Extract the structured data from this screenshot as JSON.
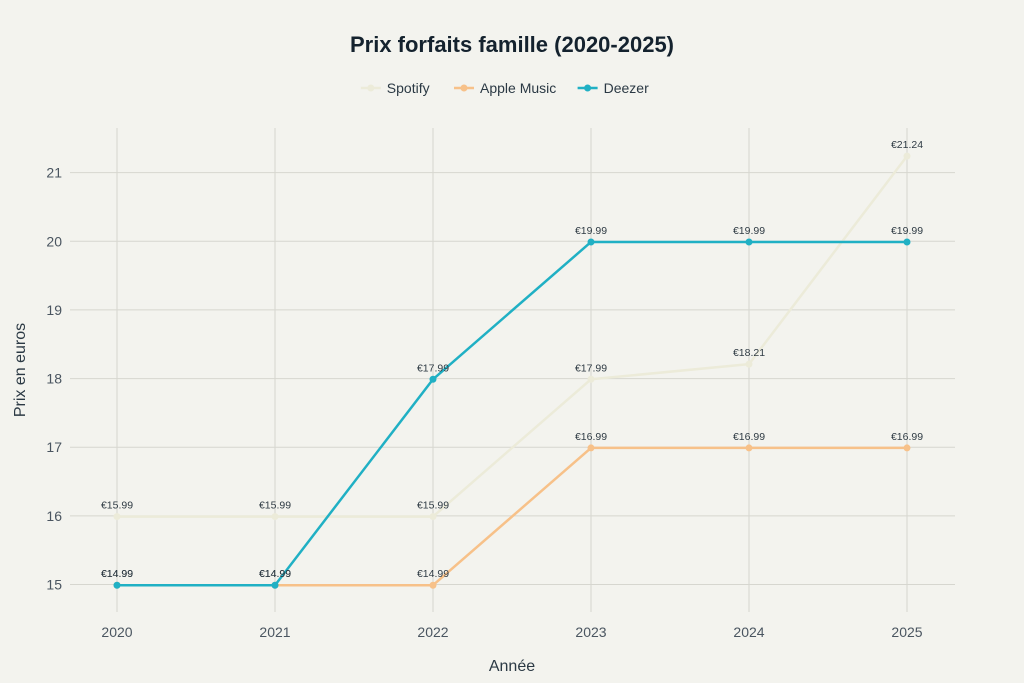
{
  "chart_data": {
    "type": "line",
    "title": "Prix forfaits famille (2020-2025)",
    "xlabel": "Année",
    "ylabel": "Prix en euros",
    "categories": [
      "2020",
      "2021",
      "2022",
      "2023",
      "2024",
      "2025"
    ],
    "ylim": [
      14.6,
      21.65
    ],
    "yticks": [
      15,
      16,
      17,
      18,
      19,
      20,
      21
    ],
    "grid": true,
    "legend_position": "top-center",
    "series": [
      {
        "name": "Spotify",
        "color": "#ecebd9",
        "values": [
          15.99,
          15.99,
          15.99,
          17.99,
          18.21,
          21.24
        ],
        "labels": [
          "€15.99",
          "€15.99",
          "€15.99",
          "€17.99",
          "€18.21",
          "€21.24"
        ]
      },
      {
        "name": "Apple Music",
        "color": "#f7c189",
        "values": [
          14.99,
          14.99,
          14.99,
          16.99,
          16.99,
          16.99
        ],
        "labels": [
          "€14.99",
          "€14.99",
          "€14.99",
          "€16.99",
          "€16.99",
          "€16.99"
        ]
      },
      {
        "name": "Deezer",
        "color": "#20b0c4",
        "values": [
          14.99,
          14.99,
          17.99,
          19.99,
          19.99,
          19.99
        ],
        "labels": [
          "€14.99",
          "€14.99",
          "€17.99",
          "€19.99",
          "€19.99",
          "€19.99"
        ]
      }
    ]
  }
}
